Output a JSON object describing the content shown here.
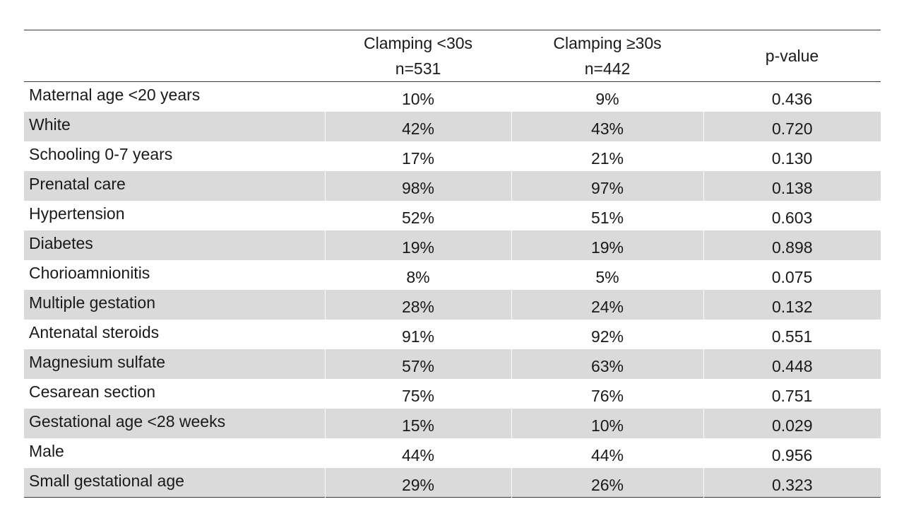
{
  "table": {
    "columns": [
      {
        "line1": "",
        "line2": ""
      },
      {
        "line1": "Clamping <30s",
        "line2": "n=531"
      },
      {
        "line1": "Clamping ≥30s",
        "line2": "n=442"
      },
      {
        "line1": "p-value",
        "line2": ""
      }
    ],
    "rows": [
      {
        "label": "Maternal age <20 years",
        "g1": "10%",
        "g2": "9%",
        "p": "0.436"
      },
      {
        "label": "White",
        "g1": "42%",
        "g2": "43%",
        "p": "0.720"
      },
      {
        "label": "Schooling 0-7 years",
        "g1": "17%",
        "g2": "21%",
        "p": "0.130"
      },
      {
        "label": "Prenatal care",
        "g1": "98%",
        "g2": "97%",
        "p": "0.138"
      },
      {
        "label": "Hypertension",
        "g1": "52%",
        "g2": "51%",
        "p": "0.603"
      },
      {
        "label": "Diabetes",
        "g1": "19%",
        "g2": "19%",
        "p": "0.898"
      },
      {
        "label": "Chorioamnionitis",
        "g1": "8%",
        "g2": "5%",
        "p": "0.075"
      },
      {
        "label": "Multiple gestation",
        "g1": "28%",
        "g2": "24%",
        "p": "0.132"
      },
      {
        "label": "Antenatal steroids",
        "g1": "91%",
        "g2": "92%",
        "p": "0.551"
      },
      {
        "label": "Magnesium sulfate",
        "g1": "57%",
        "g2": "63%",
        "p": "0.448"
      },
      {
        "label": "Cesarean section",
        "g1": "75%",
        "g2": "76%",
        "p": "0.751"
      },
      {
        "label": "Gestational age <28 weeks",
        "g1": "15%",
        "g2": "10%",
        "p": "0.029"
      },
      {
        "label": "Male",
        "g1": "44%",
        "g2": "44%",
        "p": "0.956"
      },
      {
        "label": "Small gestational age",
        "g1": "29%",
        "g2": "26%",
        "p": "0.323"
      }
    ]
  },
  "colors": {
    "shaded_row": "#dadada",
    "rule": "#3a3a3a"
  }
}
